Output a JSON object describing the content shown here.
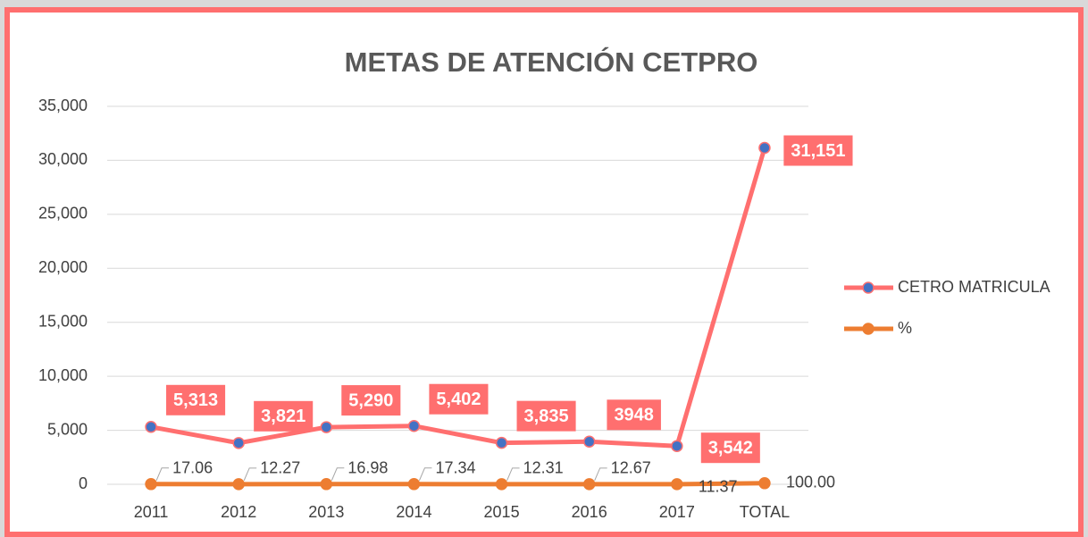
{
  "chart_data": {
    "type": "line",
    "title": "METAS DE ATENCIÓN CETPRO",
    "categories": [
      "2011",
      "2012",
      "2013",
      "2014",
      "2015",
      "2016",
      "2017",
      "TOTAL"
    ],
    "series": [
      {
        "name": "CETRO MATRICULA",
        "color": "#ff6f6f",
        "marker_color": "#4472c4",
        "values": [
          5313,
          3821,
          5290,
          5402,
          3835,
          3948,
          3542,
          31151
        ],
        "value_labels": [
          "5,313",
          "3,821",
          "5,290",
          "5,402",
          "3,835",
          "3948",
          "3,542",
          "31,151"
        ]
      },
      {
        "name": "%",
        "color": "#ed7d31",
        "marker_color": "#ed7d31",
        "values": [
          17.06,
          12.27,
          16.98,
          17.34,
          12.31,
          12.67,
          11.37,
          100
        ],
        "value_labels": [
          "17.06",
          "12.27",
          "16.98",
          "17.34",
          "12.31",
          "12.67",
          "11.37",
          "100.00"
        ]
      }
    ],
    "ylim": [
      0,
      35000
    ],
    "yticks": [
      0,
      {
        "value": 5000,
        "label": "5,000"
      },
      {
        "value": 10000,
        "label": "10,000"
      },
      {
        "value": 15000,
        "label": "15,000"
      },
      {
        "value": 20000,
        "label": "20,000"
      },
      {
        "value": 25000,
        "label": "25,000"
      },
      {
        "value": 30000,
        "label": "30,000"
      },
      {
        "value": 35000,
        "label": "35,000"
      }
    ],
    "grid": true,
    "legend": "right"
  }
}
